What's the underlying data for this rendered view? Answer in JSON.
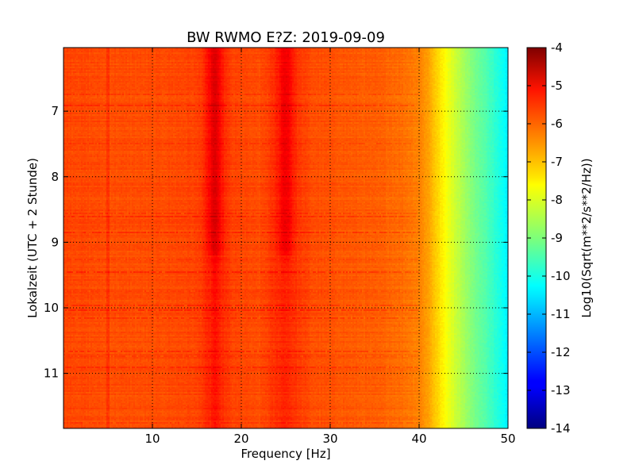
{
  "chart_data": {
    "type": "heatmap",
    "title": "BW RWMO E?Z: 2019-09-09",
    "xlabel": "Frequency [Hz]",
    "ylabel": "Lokalzeit (UTC + 2 Stunde)",
    "xlim": [
      0,
      50
    ],
    "ylim": [
      6.03,
      11.84
    ],
    "y_inverted": true,
    "x_ticks": [
      "10",
      "20",
      "30",
      "40",
      "50"
    ],
    "y_ticks": [
      "7",
      "8",
      "9",
      "10",
      "11"
    ],
    "grid": true,
    "colormap": "jet",
    "colorbar": {
      "label": "Log10(Sqrt(m**2/s**2/Hz))",
      "range": [
        -14,
        -4
      ],
      "ticks": [
        "-4",
        "-5",
        "-6",
        "-7",
        "-8",
        "-9",
        "-10",
        "-11",
        "-12",
        "-13",
        "-14"
      ]
    },
    "spectral_profile": {
      "frequency_hz": [
        0,
        5,
        10,
        15,
        16.5,
        17,
        17.5,
        19,
        22,
        24,
        25,
        26,
        28,
        32,
        36,
        38,
        40,
        41,
        42,
        43,
        44,
        45,
        46,
        47,
        48,
        49,
        50
      ],
      "log10_amplitude": [
        -5.9,
        -6.0,
        -6.0,
        -5.9,
        -5.6,
        -5.4,
        -5.6,
        -5.9,
        -6.0,
        -5.7,
        -5.6,
        -5.75,
        -6.0,
        -6.1,
        -6.2,
        -6.3,
        -6.5,
        -6.8,
        -7.3,
        -7.8,
        -8.2,
        -8.6,
        -9.0,
        -9.3,
        -9.6,
        -10.0,
        -10.4
      ]
    },
    "peaks_hz": [
      17,
      25
    ],
    "peak_time_range": [
      6.1,
      9.1
    ]
  }
}
